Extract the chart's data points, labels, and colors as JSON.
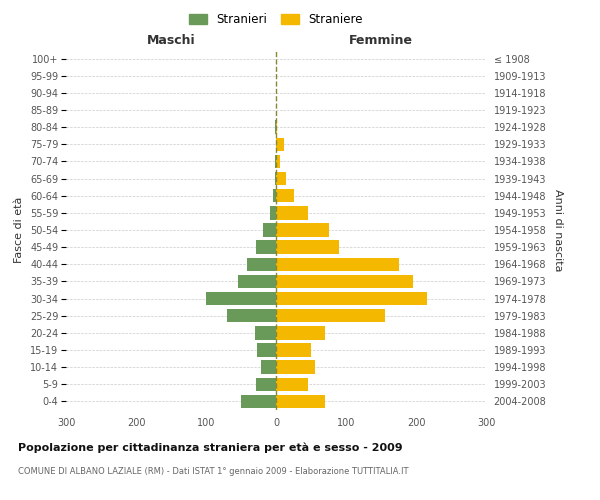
{
  "age_groups_bottom_to_top": [
    "0-4",
    "5-9",
    "10-14",
    "15-19",
    "20-24",
    "25-29",
    "30-34",
    "35-39",
    "40-44",
    "45-49",
    "50-54",
    "55-59",
    "60-64",
    "65-69",
    "70-74",
    "75-79",
    "80-84",
    "85-89",
    "90-94",
    "95-99",
    "100+"
  ],
  "birth_years_bottom_to_top": [
    "2004-2008",
    "1999-2003",
    "1994-1998",
    "1989-1993",
    "1984-1988",
    "1979-1983",
    "1974-1978",
    "1969-1973",
    "1964-1968",
    "1959-1963",
    "1954-1958",
    "1949-1953",
    "1944-1948",
    "1939-1943",
    "1934-1938",
    "1929-1933",
    "1924-1928",
    "1919-1923",
    "1914-1918",
    "1909-1913",
    "≤ 1908"
  ],
  "maschi_bottom_to_top": [
    50,
    28,
    22,
    27,
    30,
    70,
    100,
    55,
    42,
    28,
    18,
    8,
    5,
    2,
    1,
    0,
    1,
    0,
    0,
    0,
    0
  ],
  "femmine_bottom_to_top": [
    70,
    45,
    55,
    50,
    70,
    155,
    215,
    195,
    175,
    90,
    75,
    45,
    25,
    14,
    5,
    12,
    2,
    0,
    0,
    0,
    0
  ],
  "color_maschi": "#6a9a5a",
  "color_femmine": "#f5b800",
  "title": "Popolazione per cittadinanza straniera per età e sesso - 2009",
  "subtitle": "COMUNE DI ALBANO LAZIALE (RM) - Dati ISTAT 1° gennaio 2009 - Elaborazione TUTTITALIA.IT",
  "ylabel_left": "Fasce di età",
  "ylabel_right": "Anni di nascita",
  "xlabel_left": "Maschi",
  "xlabel_right": "Femmine",
  "legend_maschi": "Stranieri",
  "legend_femmine": "Straniere",
  "xlim": 300,
  "background_color": "#ffffff",
  "grid_color": "#cccccc"
}
